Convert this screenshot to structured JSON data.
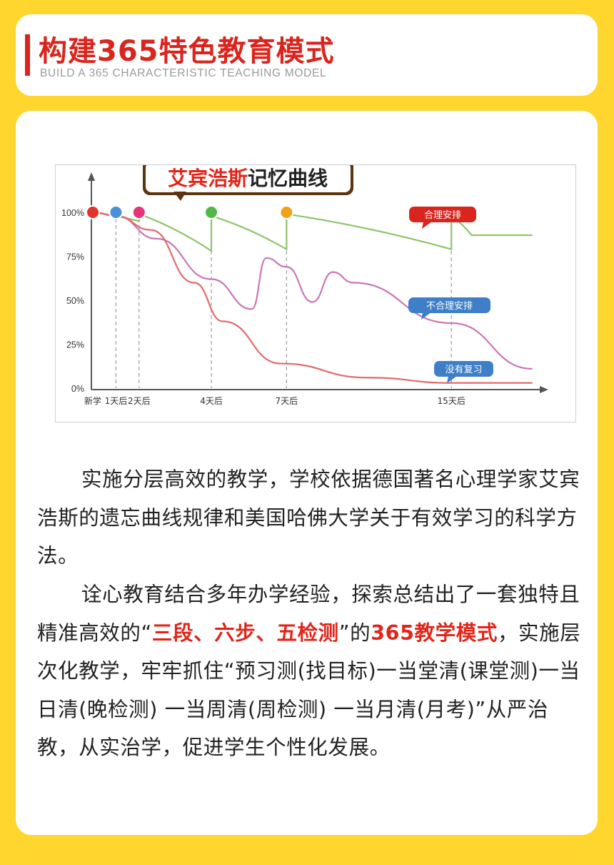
{
  "header": {
    "title": "构建365特色教育模式",
    "subtitle": "BUILD A 365 CHARACTERISTIC TEACHING MODEL"
  },
  "chart_data": {
    "type": "line",
    "title": "艾宾浩斯记忆曲线",
    "categories": [
      "新学",
      "1天后",
      "2天后",
      "4天后",
      "7天后",
      "15天后"
    ],
    "y_tick_labels": [
      "100%",
      "75%",
      "50%",
      "25%",
      "0%"
    ],
    "ylim": [
      0,
      100
    ],
    "series": [
      {
        "name": "合理安排",
        "color": "#8ec46a",
        "x": [
          0,
          0.6,
          1.2,
          2.7,
          4.5,
          8.4,
          8.9,
          9.7
        ],
        "values": [
          100,
          99,
          97,
          78,
          76,
          78,
          88,
          85
        ]
      },
      {
        "name": "不合理安排",
        "color": "#c977b7",
        "x": [
          0,
          0.5,
          1.2,
          2.7,
          3.8,
          4.5,
          5.3,
          6.5,
          8.6,
          10.4
        ],
        "values": [
          100,
          98,
          90,
          62,
          45,
          68,
          49,
          55,
          30,
          11
        ]
      },
      {
        "name": "没有复习",
        "color": "#e26a6a",
        "x": [
          0,
          0.5,
          1.2,
          2.1,
          2.7,
          3.9,
          5.8,
          8.4,
          10.4
        ],
        "values": [
          100,
          98,
          88,
          55,
          36,
          15,
          6,
          2,
          2
        ]
      }
    ],
    "review_points": [
      {
        "label": "新学",
        "color": "#e53030"
      },
      {
        "label": "1天后",
        "color": "#4a90d9"
      },
      {
        "label": "2天后",
        "color": "#e6337a"
      },
      {
        "label": "4天后",
        "color": "#50b848"
      },
      {
        "label": "7天后",
        "color": "#f2a21a"
      },
      {
        "label": "15天后",
        "color": "#7b5aa6"
      }
    ]
  },
  "paragraphs": {
    "p1": "实施分层高效的教学，学校依据德国著名心理学家艾宾浩斯的遗忘曲线规律和美国哈佛大学关于有效学习的科学方法。",
    "p2_a": "诠心教育结合多年办学经验，探索总结出了一套独特且精准高效的“",
    "p2_red1": "三段、六步、五检测",
    "p2_b": "”的",
    "p2_red2": "365教学模式",
    "p2_c": "，实施层次化教学，牢牢抓住“预习测(找目标)一当堂清(课堂测)一当日清(晚检测) 一当周清(周检测) 一当月清(月考)”从严治教，从实治学，促进学生个性化发展。"
  }
}
